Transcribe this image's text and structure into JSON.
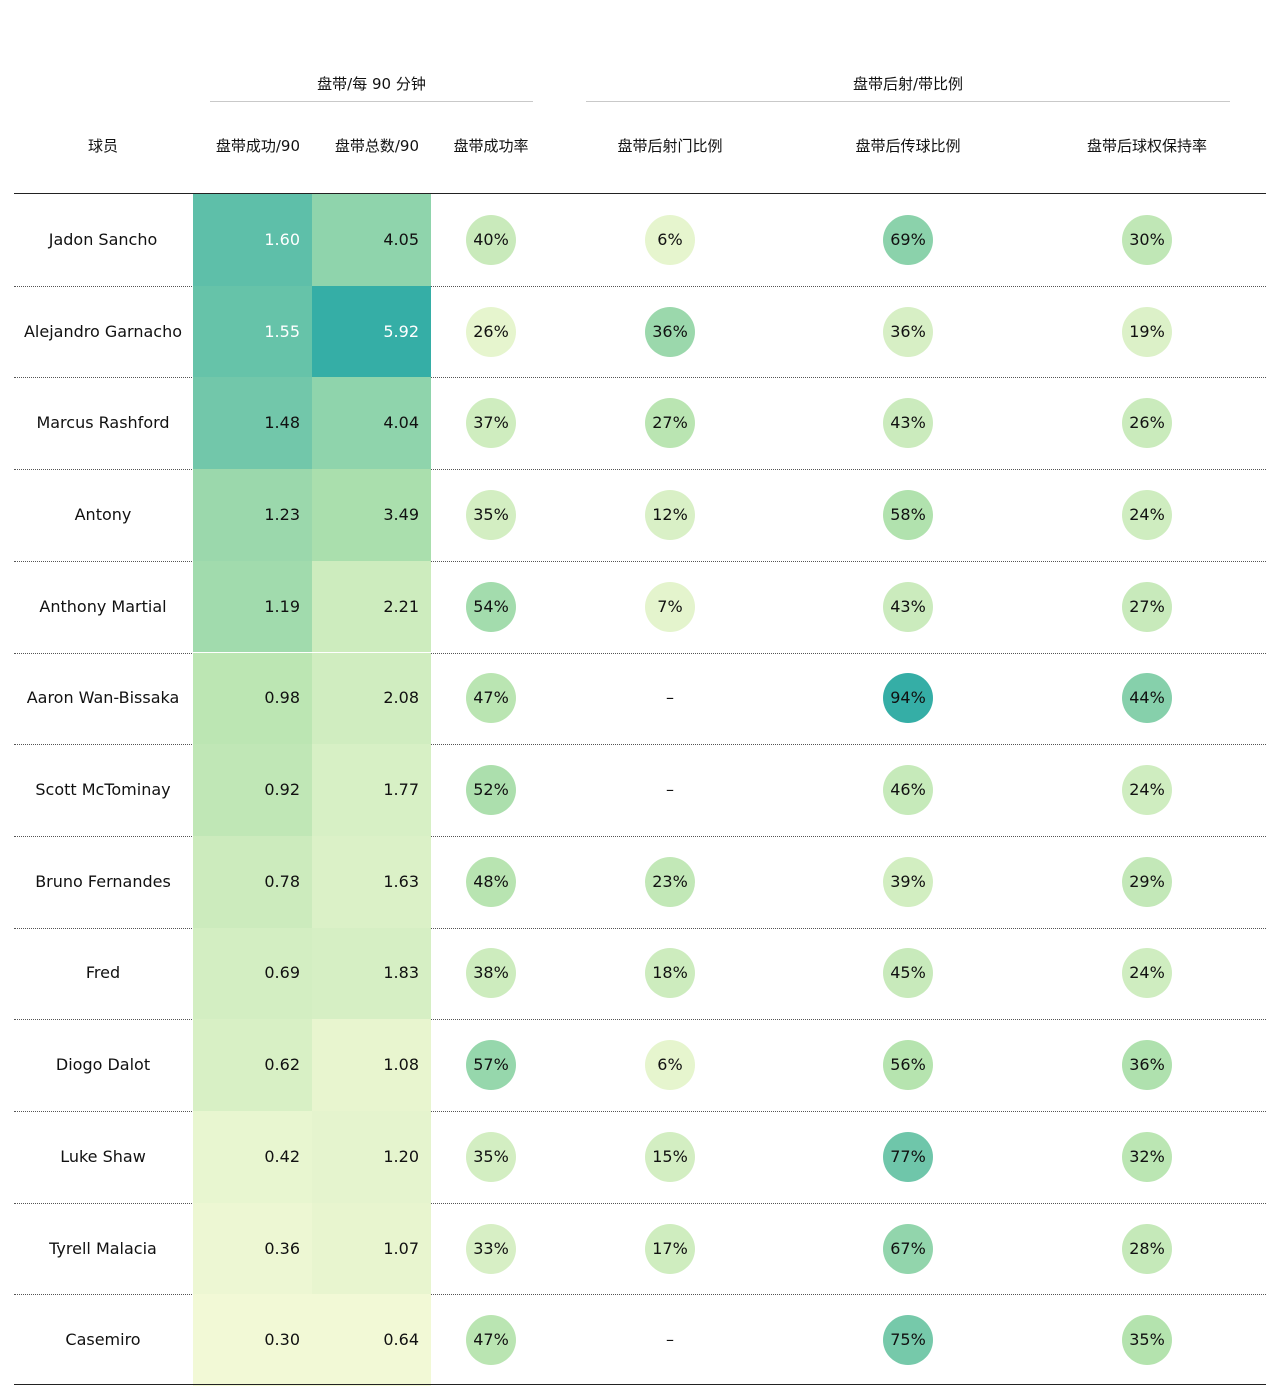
{
  "header": {
    "group1": "盘带/每 90 分钟",
    "group2": "盘带后射/带比例",
    "columns": [
      "球员",
      "盘带成功/90",
      "盘带总数/90",
      "盘带成功率",
      "盘带后射门比例",
      "盘带后传球比例",
      "盘带后球权保持率"
    ]
  },
  "rows": [
    {
      "player": "Jadon Sancho",
      "succ90": "1.60",
      "total90": "4.05",
      "rate": "40%",
      "shot": "6%",
      "pass": "69%",
      "retain": "30%"
    },
    {
      "player": "Alejandro Garnacho",
      "succ90": "1.55",
      "total90": "5.92",
      "rate": "26%",
      "shot": "36%",
      "pass": "36%",
      "retain": "19%"
    },
    {
      "player": "Marcus Rashford",
      "succ90": "1.48",
      "total90": "4.04",
      "rate": "37%",
      "shot": "27%",
      "pass": "43%",
      "retain": "26%"
    },
    {
      "player": "Antony",
      "succ90": "1.23",
      "total90": "3.49",
      "rate": "35%",
      "shot": "12%",
      "pass": "58%",
      "retain": "24%"
    },
    {
      "player": "Anthony Martial",
      "succ90": "1.19",
      "total90": "2.21",
      "rate": "54%",
      "shot": "7%",
      "pass": "43%",
      "retain": "27%"
    },
    {
      "player": "Aaron Wan-Bissaka",
      "succ90": "0.98",
      "total90": "2.08",
      "rate": "47%",
      "shot": "–",
      "pass": "94%",
      "retain": "44%"
    },
    {
      "player": "Scott McTominay",
      "succ90": "0.92",
      "total90": "1.77",
      "rate": "52%",
      "shot": "–",
      "pass": "46%",
      "retain": "24%"
    },
    {
      "player": "Bruno Fernandes",
      "succ90": "0.78",
      "total90": "1.63",
      "rate": "48%",
      "shot": "23%",
      "pass": "39%",
      "retain": "29%"
    },
    {
      "player": "Fred",
      "succ90": "0.69",
      "total90": "1.83",
      "rate": "38%",
      "shot": "18%",
      "pass": "45%",
      "retain": "24%"
    },
    {
      "player": "Diogo Dalot",
      "succ90": "0.62",
      "total90": "1.08",
      "rate": "57%",
      "shot": "6%",
      "pass": "56%",
      "retain": "36%"
    },
    {
      "player": "Luke Shaw",
      "succ90": "0.42",
      "total90": "1.20",
      "rate": "35%",
      "shot": "15%",
      "pass": "77%",
      "retain": "32%"
    },
    {
      "player": "Tyrell Malacia",
      "succ90": "0.36",
      "total90": "1.07",
      "rate": "33%",
      "shot": "17%",
      "pass": "67%",
      "retain": "28%"
    },
    {
      "player": "Casemiro",
      "succ90": "0.30",
      "total90": "0.64",
      "rate": "47%",
      "shot": "–",
      "pass": "75%",
      "retain": "35%"
    }
  ],
  "colors": {
    "scale_low": "#f2f9d6",
    "scale_mid": "#b4e3ae",
    "scale_high": "#35aea6",
    "rule": "#222222",
    "separator": "#555555"
  },
  "chart_data": {
    "type": "table",
    "columns": [
      "球员",
      "盘带成功/90",
      "盘带总数/90",
      "盘带成功率",
      "盘带后射门比例",
      "盘带后传球比例",
      "盘带后球权保持率"
    ],
    "column_groups": [
      {
        "label": "盘带/每 90 分钟",
        "columns": [
          "盘带成功/90",
          "盘带总数/90",
          "盘带成功率"
        ]
      },
      {
        "label": "盘带后射/带比例",
        "columns": [
          "盘带后射门比例",
          "盘带后传球比例",
          "盘带后球权保持率"
        ]
      }
    ]
  }
}
